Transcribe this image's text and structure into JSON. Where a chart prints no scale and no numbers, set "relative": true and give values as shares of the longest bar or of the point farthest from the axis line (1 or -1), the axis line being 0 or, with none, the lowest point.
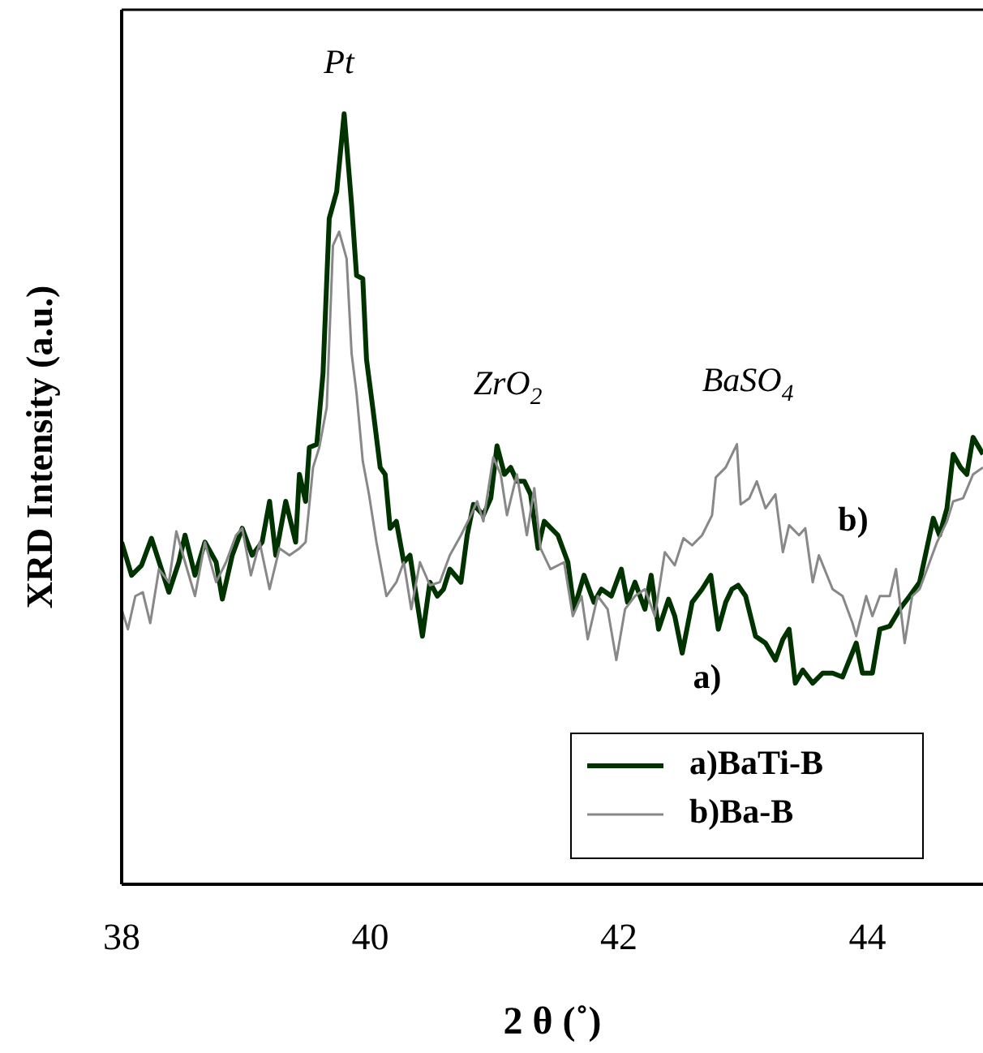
{
  "chart_data": {
    "type": "line",
    "relative": true,
    "xlabel": "2 θ (˚)",
    "ylabel": "XRD Intensity (a.u.)",
    "xlim": [
      38,
      44.93
    ],
    "xticks": [
      38,
      40,
      42,
      44
    ],
    "legend": "bottom right",
    "marker": "none",
    "line_style": "solid",
    "grid": false,
    "annotations": [
      "Pt",
      "ZrO$_{2}$",
      "BaSO$_{4}$",
      "a)",
      "b)"
    ],
    "series": [
      {
        "name": "a)BaTi-B",
        "color": "#003300",
        "x": [
          38.0,
          38.08,
          38.16,
          38.24,
          38.32,
          38.38,
          38.46,
          38.51,
          38.59,
          38.67,
          38.76,
          38.81,
          38.89,
          38.97,
          39.05,
          39.13,
          39.19,
          39.24,
          39.32,
          39.4,
          39.43,
          39.48,
          39.51,
          39.57,
          39.62,
          39.67,
          39.73,
          39.79,
          39.85,
          39.89,
          39.94,
          39.97,
          40.02,
          40.08,
          40.12,
          40.16,
          40.21,
          40.27,
          40.32,
          40.37,
          40.42,
          40.48,
          40.54,
          40.59,
          40.64,
          40.73,
          40.78,
          40.83,
          40.91,
          40.97,
          41.02,
          41.08,
          41.13,
          41.18,
          41.24,
          41.29,
          41.35,
          41.4,
          41.51,
          41.59,
          41.64,
          41.72,
          41.8,
          41.86,
          41.94,
          42.02,
          42.07,
          42.13,
          42.21,
          42.26,
          42.32,
          42.4,
          42.45,
          42.51,
          42.59,
          42.67,
          42.74,
          42.8,
          42.86,
          42.91,
          42.96,
          43.02,
          43.1,
          43.18,
          43.26,
          43.32,
          43.37,
          43.42,
          43.48,
          43.56,
          43.64,
          43.72,
          43.8,
          43.91,
          43.96,
          44.04,
          44.1,
          44.18,
          44.26,
          44.34,
          44.42,
          44.53,
          44.58,
          44.64,
          44.69,
          44.75,
          44.8,
          44.85,
          44.93
        ],
        "values": [
          0.444,
          0.401,
          0.414,
          0.449,
          0.409,
          0.379,
          0.418,
          0.453,
          0.401,
          0.444,
          0.418,
          0.37,
          0.427,
          0.462,
          0.427,
          0.444,
          0.497,
          0.427,
          0.497,
          0.444,
          0.532,
          0.497,
          0.567,
          0.571,
          0.663,
          0.864,
          0.899,
          1.0,
          0.882,
          0.79,
          0.786,
          0.681,
          0.619,
          0.541,
          0.532,
          0.462,
          0.471,
          0.418,
          0.427,
          0.374,
          0.322,
          0.392,
          0.374,
          0.383,
          0.409,
          0.392,
          0.453,
          0.493,
          0.479,
          0.501,
          0.569,
          0.532,
          0.541,
          0.523,
          0.523,
          0.506,
          0.436,
          0.471,
          0.453,
          0.418,
          0.357,
          0.401,
          0.366,
          0.383,
          0.374,
          0.409,
          0.366,
          0.392,
          0.357,
          0.401,
          0.331,
          0.37,
          0.348,
          0.3,
          0.366,
          0.383,
          0.401,
          0.331,
          0.366,
          0.383,
          0.388,
          0.374,
          0.322,
          0.313,
          0.291,
          0.318,
          0.331,
          0.261,
          0.278,
          0.261,
          0.274,
          0.274,
          0.269,
          0.313,
          0.274,
          0.274,
          0.331,
          0.335,
          0.357,
          0.374,
          0.392,
          0.475,
          0.453,
          0.488,
          0.558,
          0.541,
          0.532,
          0.58,
          0.558
        ]
      },
      {
        "name": "b)Ba-B",
        "color": "#888888",
        "x": [
          38.0,
          38.05,
          38.11,
          38.17,
          38.23,
          38.3,
          38.38,
          38.44,
          38.51,
          38.59,
          38.67,
          38.76,
          38.84,
          38.92,
          38.97,
          39.04,
          39.11,
          39.19,
          39.27,
          39.35,
          39.43,
          39.48,
          39.54,
          39.59,
          39.65,
          39.7,
          39.75,
          39.81,
          39.85,
          39.89,
          39.94,
          39.99,
          40.05,
          40.13,
          40.21,
          40.27,
          40.33,
          40.4,
          40.48,
          40.56,
          40.64,
          40.73,
          40.81,
          40.86,
          40.91,
          40.99,
          41.05,
          41.1,
          41.18,
          41.26,
          41.32,
          41.37,
          41.45,
          41.56,
          41.63,
          41.7,
          41.75,
          41.83,
          41.91,
          41.98,
          42.05,
          42.13,
          42.21,
          42.29,
          42.37,
          42.45,
          42.52,
          42.59,
          42.67,
          42.75,
          42.78,
          42.86,
          42.95,
          42.98,
          43.05,
          43.11,
          43.18,
          43.26,
          43.32,
          43.37,
          43.45,
          43.5,
          43.56,
          43.61,
          43.72,
          43.8,
          43.88,
          43.91,
          43.99,
          44.04,
          44.1,
          44.18,
          44.23,
          44.3,
          44.36,
          44.42,
          44.48,
          44.56,
          44.64,
          44.69,
          44.77,
          44.85,
          44.93
        ],
        "values": [
          0.357,
          0.331,
          0.374,
          0.379,
          0.339,
          0.409,
          0.392,
          0.458,
          0.418,
          0.374,
          0.444,
          0.392,
          0.418,
          0.453,
          0.462,
          0.401,
          0.444,
          0.383,
          0.436,
          0.427,
          0.436,
          0.444,
          0.541,
          0.567,
          0.619,
          0.829,
          0.847,
          0.812,
          0.689,
          0.637,
          0.549,
          0.506,
          0.444,
          0.374,
          0.392,
          0.418,
          0.357,
          0.418,
          0.388,
          0.392,
          0.427,
          0.453,
          0.479,
          0.497,
          0.471,
          0.554,
          0.532,
          0.479,
          0.532,
          0.453,
          0.514,
          0.436,
          0.409,
          0.418,
          0.348,
          0.374,
          0.318,
          0.374,
          0.357,
          0.291,
          0.357,
          0.374,
          0.383,
          0.348,
          0.431,
          0.414,
          0.449,
          0.44,
          0.453,
          0.479,
          0.528,
          0.541,
          0.571,
          0.493,
          0.501,
          0.523,
          0.488,
          0.506,
          0.431,
          0.466,
          0.453,
          0.462,
          0.392,
          0.427,
          0.383,
          0.374,
          0.339,
          0.322,
          0.374,
          0.348,
          0.374,
          0.374,
          0.409,
          0.313,
          0.374,
          0.383,
          0.409,
          0.444,
          0.471,
          0.497,
          0.501,
          0.532,
          0.541
        ]
      }
    ]
  }
}
